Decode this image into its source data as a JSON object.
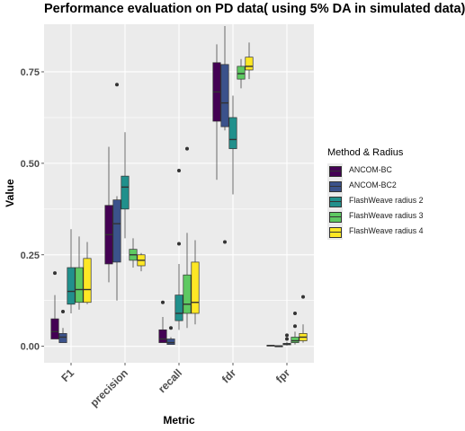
{
  "chart_data": {
    "type": "boxplot",
    "title": "Performance evaluation on PD data( using 5% DA in simulated data)",
    "xlabel": "Metric",
    "ylabel": "Value",
    "categories": [
      "F1",
      "precision",
      "recall",
      "fdr",
      "fpr"
    ],
    "ylim": [
      -0.045,
      0.88
    ],
    "yticks": [
      0,
      0.25,
      0.5,
      0.75
    ],
    "ytick_labels": [
      "0.00",
      "0.25",
      "0.50",
      "0.75"
    ],
    "grid": true,
    "legend": {
      "title": "Method & Radius",
      "position": "right"
    },
    "series": [
      {
        "name": "ANCOM-BC",
        "color": "#440154",
        "boxes": [
          {
            "category": "F1",
            "min": 0.02,
            "q1": 0.02,
            "median": 0.04,
            "q3": 0.075,
            "max": 0.14,
            "outliers": [
              0.2
            ]
          },
          {
            "category": "precision",
            "min": 0.175,
            "q1": 0.225,
            "median": 0.305,
            "q3": 0.385,
            "max": 0.545,
            "outliers": []
          },
          {
            "category": "recall",
            "min": 0.01,
            "q1": 0.01,
            "median": 0.02,
            "q3": 0.045,
            "max": 0.08,
            "outliers": [
              0.12
            ]
          },
          {
            "category": "fdr",
            "min": 0.455,
            "q1": 0.615,
            "median": 0.695,
            "q3": 0.775,
            "max": 0.825,
            "outliers": []
          },
          {
            "category": "fpr",
            "min": 0.0,
            "q1": 0.001,
            "median": 0.002,
            "q3": 0.003,
            "max": 0.004,
            "outliers": []
          }
        ]
      },
      {
        "name": "ANCOM-BC2",
        "color": "#3b528b",
        "boxes": [
          {
            "category": "F1",
            "min": 0.01,
            "q1": 0.01,
            "median": 0.025,
            "q3": 0.035,
            "max": 0.05,
            "outliers": [
              0.095
            ]
          },
          {
            "category": "precision",
            "min": 0.125,
            "q1": 0.23,
            "median": 0.335,
            "q3": 0.4,
            "max": 0.41,
            "outliers": [
              0.715
            ]
          },
          {
            "category": "recall",
            "min": 0.005,
            "q1": 0.005,
            "median": 0.01,
            "q3": 0.02,
            "max": 0.025,
            "outliers": [
              0.05
            ]
          },
          {
            "category": "fdr",
            "min": 0.59,
            "q1": 0.6,
            "median": 0.665,
            "q3": 0.77,
            "max": 0.875,
            "outliers": [
              0.285
            ]
          },
          {
            "category": "fpr",
            "min": 0.0,
            "q1": 0.0,
            "median": 0.001,
            "q3": 0.001,
            "max": 0.002,
            "outliers": []
          }
        ]
      },
      {
        "name": "FlashWeave radius 2",
        "color": "#21908c",
        "boxes": [
          {
            "category": "F1",
            "min": 0.09,
            "q1": 0.115,
            "median": 0.15,
            "q3": 0.215,
            "max": 0.32,
            "outliers": []
          },
          {
            "category": "precision",
            "min": 0.295,
            "q1": 0.375,
            "median": 0.435,
            "q3": 0.465,
            "max": 0.585,
            "outliers": []
          },
          {
            "category": "recall",
            "min": 0.045,
            "q1": 0.07,
            "median": 0.09,
            "q3": 0.14,
            "max": 0.225,
            "outliers": [
              0.28,
              0.48
            ]
          },
          {
            "category": "fdr",
            "min": 0.415,
            "q1": 0.54,
            "median": 0.565,
            "q3": 0.625,
            "max": 0.685,
            "outliers": []
          },
          {
            "category": "fpr",
            "min": 0.002,
            "q1": 0.004,
            "median": 0.006,
            "q3": 0.008,
            "max": 0.012,
            "outliers": [
              0.02,
              0.03
            ]
          }
        ]
      },
      {
        "name": "FlashWeave radius 3",
        "color": "#5ec962",
        "boxes": [
          {
            "category": "F1",
            "min": 0.1,
            "q1": 0.12,
            "median": 0.155,
            "q3": 0.215,
            "max": 0.3,
            "outliers": []
          },
          {
            "category": "precision",
            "min": 0.215,
            "q1": 0.235,
            "median": 0.25,
            "q3": 0.265,
            "max": 0.295,
            "outliers": []
          },
          {
            "category": "recall",
            "min": 0.05,
            "q1": 0.09,
            "median": 0.115,
            "q3": 0.195,
            "max": 0.31,
            "outliers": [
              0.54
            ]
          },
          {
            "category": "fdr",
            "min": 0.705,
            "q1": 0.73,
            "median": 0.745,
            "q3": 0.765,
            "max": 0.785,
            "outliers": []
          },
          {
            "category": "fpr",
            "min": 0.005,
            "q1": 0.01,
            "median": 0.015,
            "q3": 0.025,
            "max": 0.04,
            "outliers": [
              0.055,
              0.09
            ]
          }
        ]
      },
      {
        "name": "FlashWeave radius 4",
        "color": "#fde725",
        "boxes": [
          {
            "category": "F1",
            "min": 0.115,
            "q1": 0.12,
            "median": 0.155,
            "q3": 0.24,
            "max": 0.285,
            "outliers": []
          },
          {
            "category": "precision",
            "min": 0.205,
            "q1": 0.22,
            "median": 0.235,
            "q3": 0.25,
            "max": 0.255,
            "outliers": []
          },
          {
            "category": "recall",
            "min": 0.06,
            "q1": 0.09,
            "median": 0.12,
            "q3": 0.23,
            "max": 0.29,
            "outliers": []
          },
          {
            "category": "fdr",
            "min": 0.73,
            "q1": 0.755,
            "median": 0.765,
            "q3": 0.79,
            "max": 0.83,
            "outliers": []
          },
          {
            "category": "fpr",
            "min": 0.01,
            "q1": 0.015,
            "median": 0.025,
            "q3": 0.035,
            "max": 0.06,
            "outliers": [
              0.135
            ]
          }
        ]
      }
    ]
  }
}
